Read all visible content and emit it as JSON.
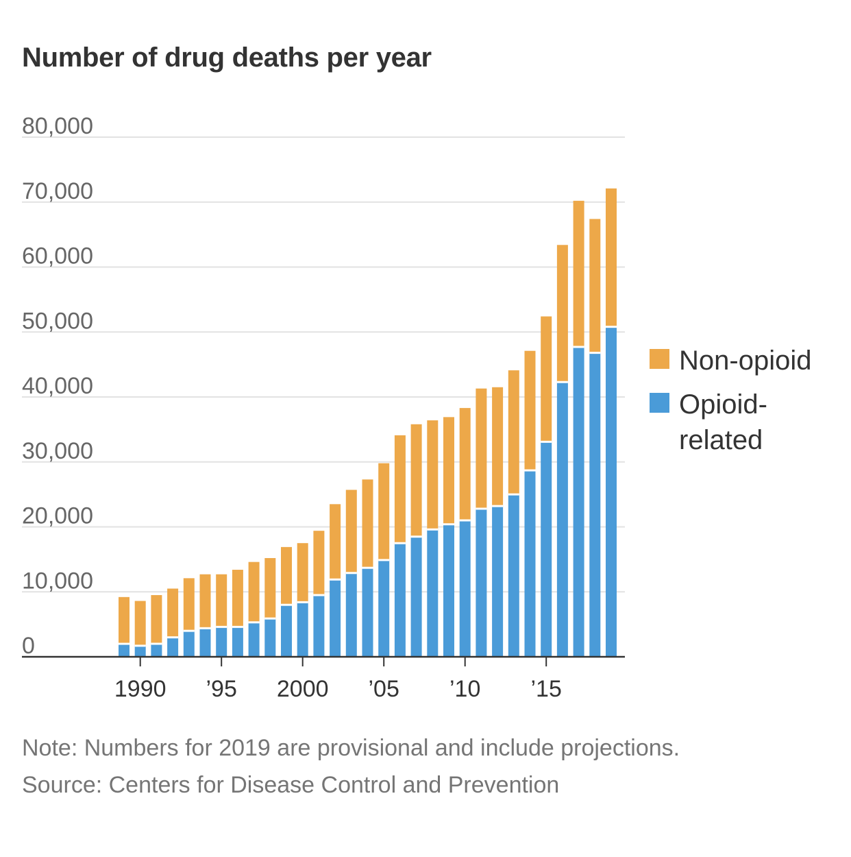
{
  "title": "Number of drug deaths per year",
  "colors": {
    "non_opioid": "#eda849",
    "opioid": "#4a9bd8",
    "grid": "#e2e2e2",
    "axis": "#333333"
  },
  "legend": [
    {
      "key": "non_opioid",
      "label": "Non-opioid"
    },
    {
      "key": "opioid",
      "label": "Opioid-related"
    }
  ],
  "note": "Note: Numbers for 2019 are provisional and include projections.",
  "source": "Source: Centers for Disease Control and Prevention",
  "chart_data": {
    "type": "bar",
    "stacked": true,
    "categories": [
      1989,
      1990,
      1991,
      1992,
      1993,
      1994,
      1995,
      1996,
      1997,
      1998,
      1999,
      2000,
      2001,
      2002,
      2003,
      2004,
      2005,
      2006,
      2007,
      2008,
      2009,
      2010,
      2011,
      2012,
      2013,
      2014,
      2015,
      2016,
      2017,
      2018,
      2019
    ],
    "series": [
      {
        "name": "Opioid-related",
        "color_key": "opioid",
        "values": [
          2000,
          1700,
          2000,
          3000,
          4000,
          4400,
          4600,
          4600,
          5300,
          5900,
          8000,
          8400,
          9500,
          11900,
          12900,
          13700,
          14900,
          17500,
          18500,
          19600,
          20400,
          21000,
          22800,
          23200,
          25000,
          28700,
          33100,
          42300,
          47700,
          46800,
          50800
        ]
      },
      {
        "name": "Non-opioid",
        "color_key": "non_opioid",
        "values": [
          7200,
          6900,
          7500,
          7500,
          8100,
          8300,
          8100,
          8800,
          9300,
          9300,
          8900,
          9100,
          9900,
          11600,
          12800,
          13600,
          14900,
          16600,
          17300,
          16800,
          16500,
          17300,
          18500,
          18300,
          19100,
          18400,
          19300,
          21100,
          22500,
          20600,
          21300
        ]
      }
    ],
    "ylim": [
      0,
      80000
    ],
    "yticks": [
      0,
      10000,
      20000,
      30000,
      40000,
      50000,
      60000,
      70000,
      80000
    ],
    "ytick_labels": [
      "0",
      "10,000",
      "20,000",
      "30,000",
      "40,000",
      "50,000",
      "60,000",
      "70,000",
      "80,000"
    ],
    "xticks": [
      1990,
      1995,
      2000,
      2005,
      2010,
      2015
    ],
    "xtick_labels": [
      "1990",
      "’95",
      "2000",
      "’05",
      "’10",
      "’15"
    ],
    "grid": true,
    "legend_position": "right"
  }
}
